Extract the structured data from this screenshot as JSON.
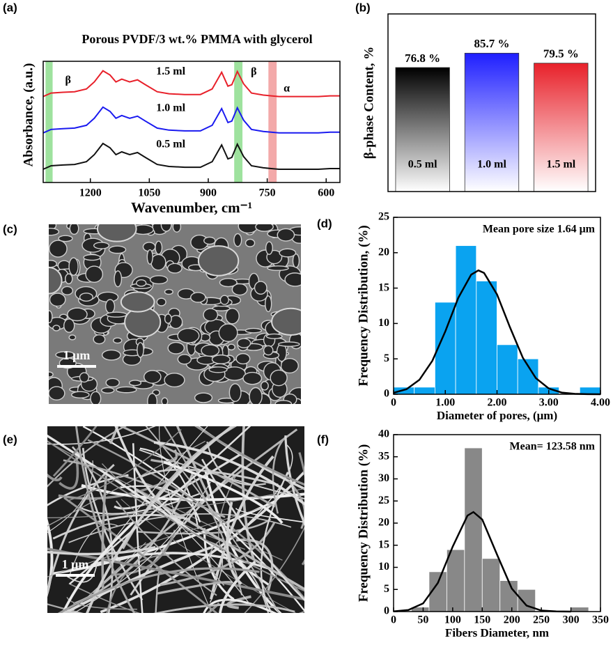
{
  "chart_data": [
    {
      "type": "line",
      "panel_label": "(a)",
      "title": "Porous PVDF/3 wt.% PMMA with glycerol",
      "x_label": "Wavenumber, cm⁻¹",
      "y_label": "Absorbance, (a.u.)",
      "x": [
        1320,
        1300,
        1270,
        1240,
        1210,
        1190,
        1168,
        1150,
        1135,
        1120,
        1100,
        1080,
        1060,
        1030,
        1000,
        960,
        920,
        890,
        866,
        850,
        840,
        826,
        810,
        790,
        760,
        740,
        720,
        690,
        650,
        620,
        590,
        565
      ],
      "xlim": [
        1320,
        565
      ],
      "xticks": [
        1200,
        1050,
        900,
        750,
        600
      ],
      "ylim": [
        0,
        100
      ],
      "series": [
        {
          "name": "1.5 ml",
          "color": "#e8202a",
          "values": [
            70.9,
            73.8,
            74.4,
            74.9,
            77.2,
            83.0,
            92.2,
            88.7,
            83.0,
            85.3,
            83.0,
            84.7,
            80.7,
            74.9,
            73.2,
            72.6,
            72.6,
            77.2,
            91.0,
            79.5,
            80.7,
            91.6,
            81.3,
            73.8,
            72.1,
            71.5,
            70.9,
            70.9,
            70.9,
            70.9,
            71.5,
            71.5
          ]
        },
        {
          "name": "1.0 ml",
          "color": "#1a1af0",
          "values": [
            40.9,
            43.8,
            44.4,
            44.9,
            47.2,
            53.0,
            62.2,
            58.7,
            53.0,
            55.3,
            53.0,
            54.7,
            50.7,
            44.9,
            43.2,
            42.6,
            42.6,
            47.2,
            61.0,
            49.5,
            50.7,
            61.6,
            51.3,
            43.8,
            42.1,
            41.5,
            40.9,
            40.9,
            40.9,
            40.9,
            41.5,
            41.5
          ]
        },
        {
          "name": "0.5 ml",
          "color": "#111111",
          "values": [
            10.9,
            13.8,
            14.4,
            14.9,
            17.2,
            23.0,
            32.2,
            28.7,
            23.0,
            25.3,
            23.0,
            24.7,
            20.7,
            14.9,
            13.2,
            12.6,
            12.6,
            17.2,
            31.0,
            19.5,
            20.7,
            31.6,
            21.3,
            13.8,
            12.1,
            11.5,
            10.9,
            10.9,
            10.9,
            10.9,
            11.5,
            11.5
          ]
        }
      ],
      "bands": [
        {
          "from": 1314,
          "to": 1296,
          "color": "#9ee29e",
          "label": "β"
        },
        {
          "from": 834,
          "to": 813,
          "color": "#9ee29e",
          "label": "β"
        },
        {
          "from": 747,
          "to": 726,
          "color": "#f3a9a9",
          "label": "α"
        }
      ]
    },
    {
      "type": "bar",
      "panel_label": "(b)",
      "y_label": "β-phase Content, %",
      "categories": [
        "0.5 ml",
        "1.0 ml",
        "1.5 ml"
      ],
      "values": [
        76.8,
        85.7,
        79.5
      ],
      "value_labels": [
        "76.8 %",
        "85.7 %",
        "79.5 %"
      ],
      "colors": [
        "#000000",
        "#1f1fff",
        "#e8212a"
      ],
      "ylim": [
        0,
        110
      ]
    },
    {
      "type": "histogram",
      "panel_label": "(d)",
      "annotation": "Mean pore size 1.64 μm",
      "x_label": "Diameter of pores, (μm)",
      "y_label": "Frequency Distribution, (%)",
      "bins": [
        0,
        0.4,
        0.8,
        1.2,
        1.6,
        2.0,
        2.4,
        2.8,
        3.2,
        3.6,
        4.0
      ],
      "counts": [
        1,
        1,
        13,
        21,
        16,
        7,
        5,
        1,
        0,
        1
      ],
      "color": "#0aa3f0",
      "xlim": [
        0,
        4
      ],
      "xticks": [
        0,
        {
          "value": 1,
          "label": "1.00"
        },
        {
          "value": 2,
          "label": "2.00"
        },
        {
          "value": 3,
          "label": "3.00"
        },
        {
          "value": 4,
          "label": "4.00"
        }
      ],
      "ylim": [
        0,
        25
      ],
      "yticks": [
        0,
        5,
        10,
        15,
        20,
        25
      ],
      "fit": {
        "x": [
          0,
          0.25,
          0.5,
          0.75,
          1.0,
          1.25,
          1.5,
          1.64,
          1.75,
          2.0,
          2.25,
          2.5,
          2.75,
          3.0,
          3.25,
          3.5,
          3.75,
          4.0
        ],
        "values": [
          0.21,
          0.72,
          2.04,
          4.73,
          8.89,
          13.6,
          16.9,
          17.5,
          17.15,
          14.1,
          9.46,
          5.15,
          2.28,
          0.82,
          0.24,
          0.06,
          0.01,
          0.0
        ]
      }
    },
    {
      "type": "histogram",
      "panel_label": "(f)",
      "annotation": "Mean= 123.58 nm",
      "x_label": "Fibers Diameter, nm",
      "y_label": "Frequency Distribution (%)",
      "bins": [
        30,
        60,
        90,
        120,
        150,
        180,
        210,
        240,
        270,
        300,
        330
      ],
      "counts": [
        1,
        9,
        14,
        37,
        12,
        7,
        5,
        0,
        0,
        1
      ],
      "color": "#888888",
      "xlim": [
        0,
        350
      ],
      "xticks": [
        0,
        50,
        100,
        150,
        200,
        250,
        300,
        350
      ],
      "ylim": [
        0,
        40
      ],
      "yticks": [
        0,
        5,
        10,
        15,
        20,
        25,
        30,
        35,
        40
      ],
      "fit": {
        "x": [
          0,
          25,
          50,
          75,
          100,
          125,
          135,
          150,
          175,
          200,
          225,
          250,
          275,
          300
        ],
        "values": [
          0.04,
          0.34,
          1.85,
          6.47,
          14.7,
          21.7,
          22.5,
          20.8,
          12.9,
          5.21,
          1.36,
          0.23,
          0.03,
          0.0
        ]
      }
    }
  ],
  "images": [
    {
      "panel_label": "(c)",
      "scale_bar": "1 μm"
    },
    {
      "panel_label": "(e)",
      "scale_bar": "1 μm"
    }
  ]
}
